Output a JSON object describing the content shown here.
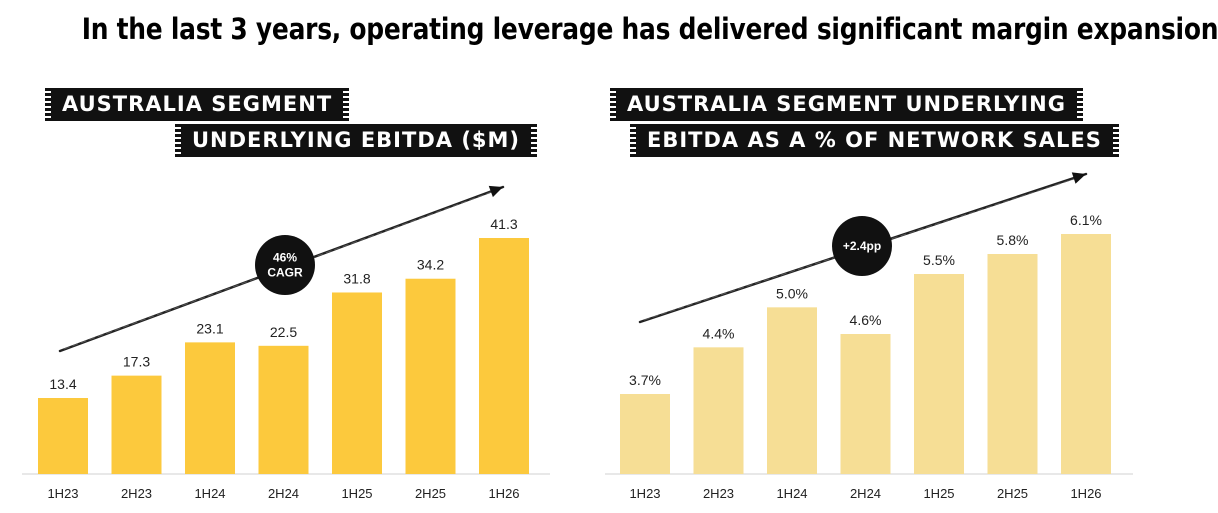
{
  "headline": "In the last 3 years, operating leverage has delivered significant margin expansion",
  "chart_data": [
    {
      "type": "bar",
      "title_lines": [
        "AUSTRALIA SEGMENT",
        "UNDERLYING EBITDA ($M)"
      ],
      "categories": [
        "1H23",
        "2H23",
        "1H24",
        "2H24",
        "1H25",
        "2H25",
        "1H26"
      ],
      "values": [
        13.4,
        17.3,
        23.1,
        22.5,
        31.8,
        34.2,
        41.3
      ],
      "labels": [
        "13.4",
        "17.3",
        "23.1",
        "22.5",
        "31.8",
        "34.2",
        "41.3"
      ],
      "ylim": [
        0,
        41.3
      ],
      "bar_color": "#FCC93D",
      "annotation": {
        "lines": [
          "46%",
          "CAGR"
        ]
      }
    },
    {
      "type": "bar",
      "title_lines": [
        "AUSTRALIA SEGMENT UNDERLYING",
        "EBITDA AS A % OF NETWORK SALES"
      ],
      "categories": [
        "1H23",
        "2H23",
        "1H24",
        "2H24",
        "1H25",
        "2H25",
        "1H26"
      ],
      "values": [
        3.7,
        4.4,
        5.0,
        4.6,
        5.5,
        5.8,
        6.1
      ],
      "labels": [
        "3.7%",
        "4.4%",
        "5.0%",
        "4.6%",
        "5.5%",
        "5.8%",
        "6.1%"
      ],
      "ylim": [
        2.4,
        6.1
      ],
      "bar_color": "#F6DE95",
      "annotation": {
        "lines": [
          "+2.4pp"
        ]
      }
    }
  ]
}
